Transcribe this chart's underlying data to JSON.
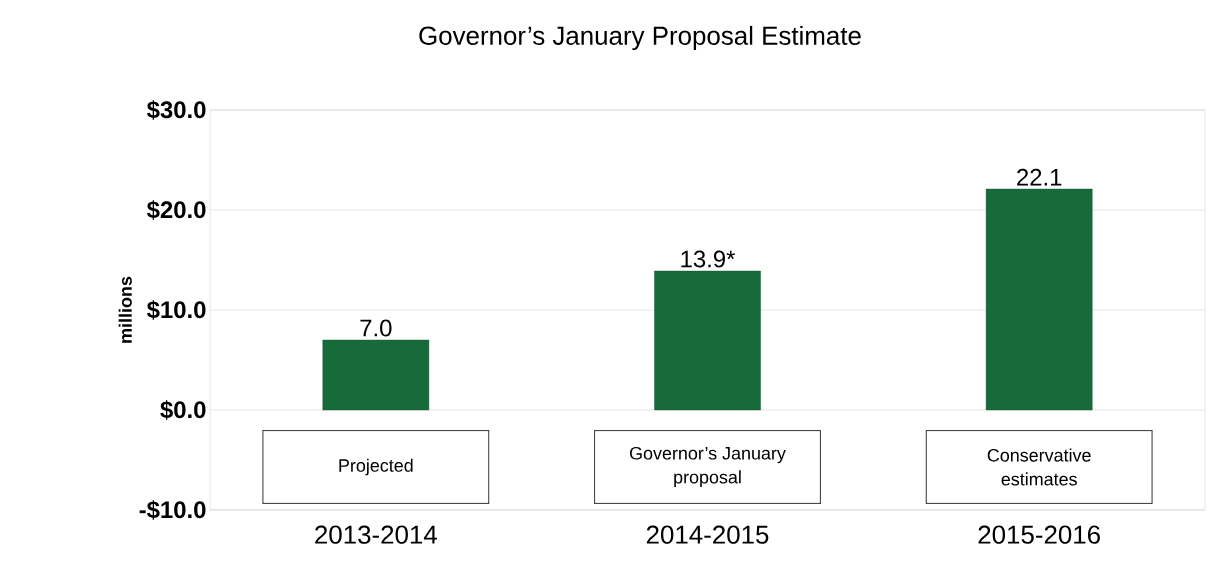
{
  "chart_data": {
    "type": "bar",
    "title": "Governor’s January  Proposal Estimate",
    "ylabel": "millions",
    "categories": [
      "2013-2014",
      "2014-2015",
      "2015-2016"
    ],
    "values": [
      7.0,
      13.9,
      22.1
    ],
    "value_labels": [
      "7.0",
      "13.9*",
      "22.1"
    ],
    "color": "#176b3a",
    "ylim": [
      -10,
      30
    ],
    "yticks": [
      {
        "value": -10,
        "label": "-$10.0"
      },
      {
        "value": 0,
        "label": "$0.0"
      },
      {
        "value": 10,
        "label": "$10.0"
      },
      {
        "value": 20,
        "label": "$20.0"
      },
      {
        "value": 30,
        "label": "$30.0"
      }
    ],
    "grid": "y",
    "annotations": [
      "Projected",
      "Governor’s January proposal",
      "Conservative estimates"
    ]
  }
}
